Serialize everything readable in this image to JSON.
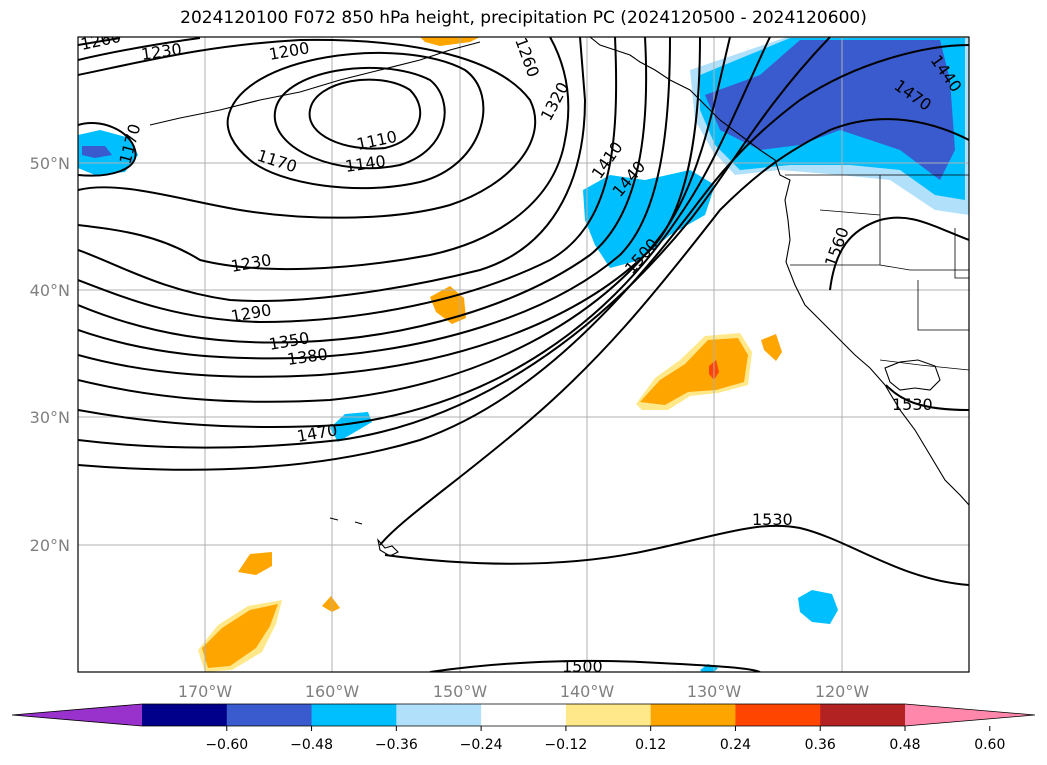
{
  "title": "2024120100 F072 850 hPa height, precipitation PC (2024120500 - 2024120600)",
  "map": {
    "lat_labels": [
      "50°N",
      "40°N",
      "30°N",
      "20°N"
    ],
    "lon_labels": [
      "170°W",
      "160°W",
      "150°W",
      "140°W",
      "130°W",
      "120°W"
    ],
    "contour_labels": [
      "1260",
      "1230",
      "1200",
      "1170",
      "1110",
      "1140",
      "1170",
      "1230",
      "1290",
      "1350",
      "1380",
      "1470",
      "1260",
      "1320",
      "1410",
      "1440",
      "1500",
      "1560",
      "1440",
      "1470",
      "1530",
      "1530",
      "1500"
    ]
  },
  "colorbar": {
    "ticks": [
      "−0.60",
      "−0.48",
      "−0.36",
      "−0.24",
      "−0.12",
      "0.12",
      "0.24",
      "0.36",
      "0.48",
      "0.60"
    ],
    "colors": [
      "#9932cc",
      "#00008b",
      "#3a5bcd",
      "#00bfff",
      "#b0e0fa",
      "#ffffff",
      "#ffe88a",
      "#ffa500",
      "#ff4500",
      "#b22222",
      "#ff87ab"
    ]
  }
}
